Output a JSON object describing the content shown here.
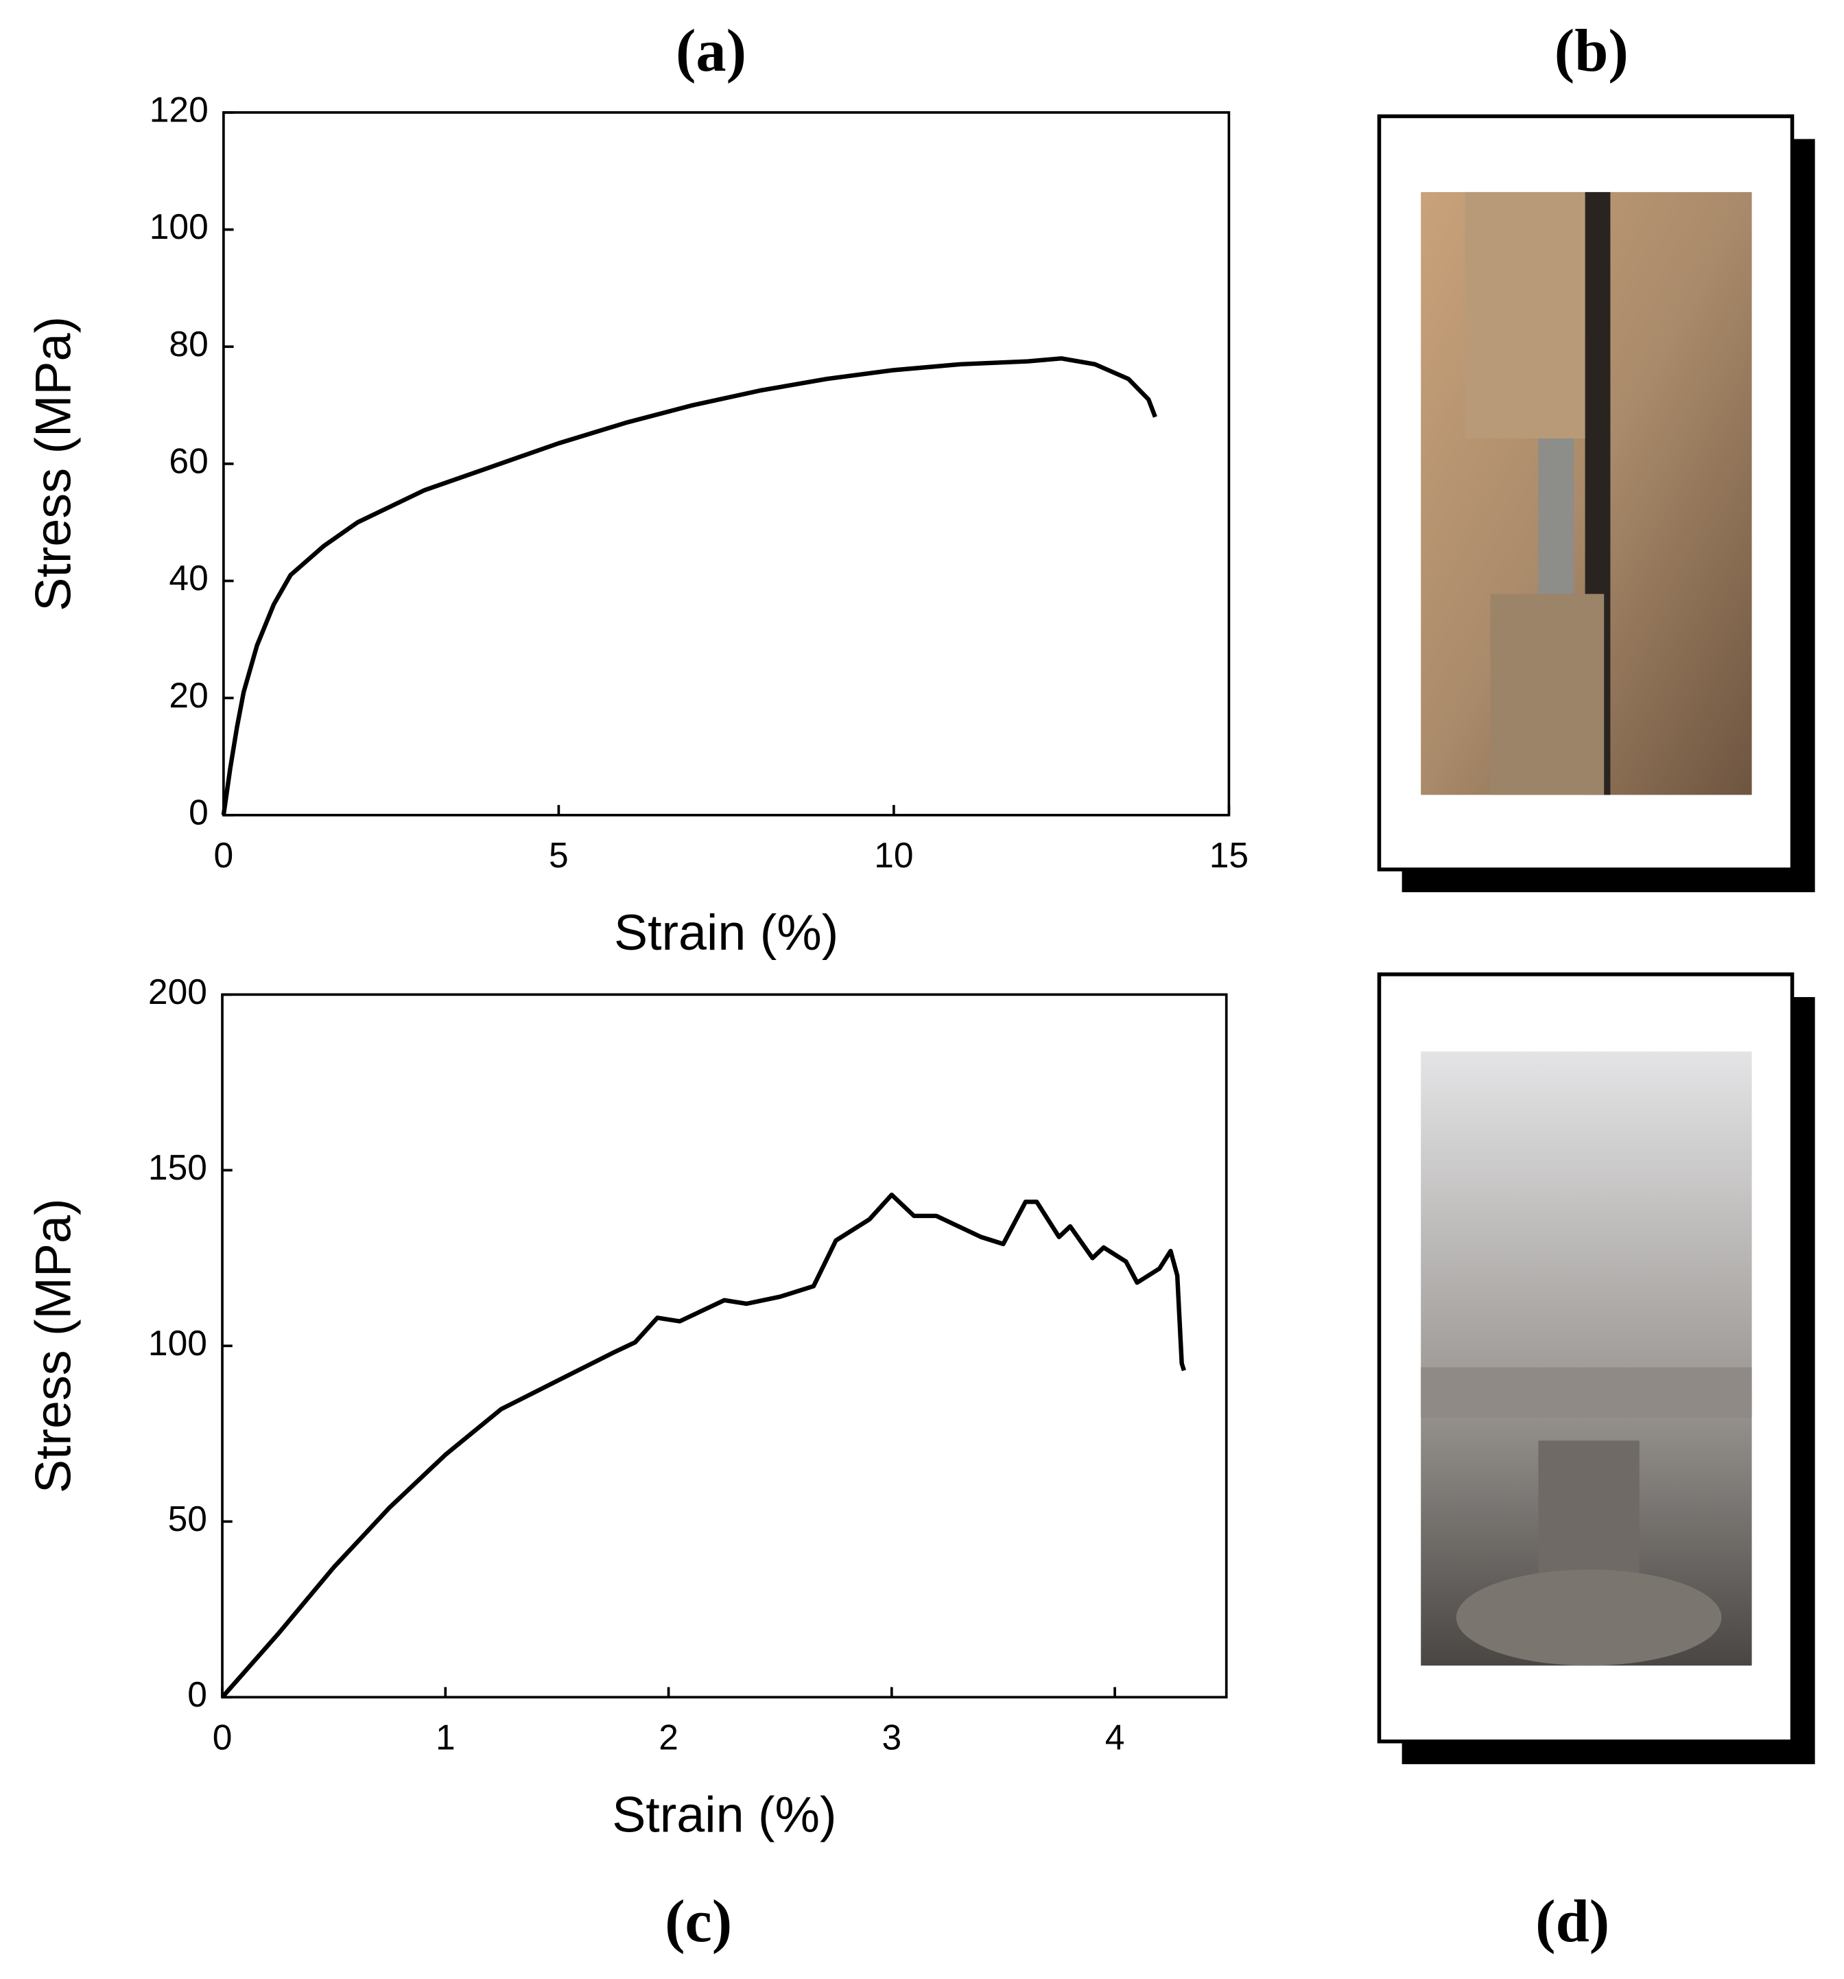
{
  "chart_data": [
    {
      "type": "line",
      "title": "(a)",
      "x_label": "Strain (%)",
      "y_label": "Stress (MPa)",
      "color": "#000000",
      "x": [
        0,
        0.1,
        0.2,
        0.3,
        0.5,
        0.75,
        1,
        1.5,
        2,
        3,
        4,
        5,
        6,
        7,
        8,
        9,
        10,
        11,
        12,
        12.5,
        13,
        13.5,
        13.8,
        13.9
      ],
      "values": [
        0,
        8,
        15,
        21,
        29,
        36,
        41,
        46,
        50,
        55.5,
        59.5,
        63.5,
        67,
        70,
        72.5,
        74.5,
        76,
        77,
        77.5,
        78,
        77,
        74.5,
        71,
        68
      ],
      "xlim": [
        0,
        15
      ],
      "ylim": [
        0,
        120
      ],
      "xticks": [
        0,
        5,
        10,
        15
      ],
      "yticks": [
        0,
        20,
        40,
        60,
        80,
        100,
        120
      ]
    },
    {
      "type": "line",
      "title": "(c)",
      "x_label": "Strain (%)",
      "y_label": "Stress (MPa)",
      "color": "#000000",
      "x": [
        0,
        0.25,
        0.5,
        0.75,
        1,
        1.25,
        1.5,
        1.75,
        1.85,
        1.95,
        2.05,
        2.25,
        2.35,
        2.5,
        2.65,
        2.75,
        2.9,
        3.0,
        3.1,
        3.2,
        3.4,
        3.5,
        3.6,
        3.65,
        3.75,
        3.8,
        3.9,
        3.95,
        4.05,
        4.1,
        4.2,
        4.25,
        4.28,
        4.3,
        4.31
      ],
      "values": [
        0,
        18,
        37,
        54,
        69,
        82,
        90,
        98,
        101,
        108,
        107,
        113,
        112,
        114,
        117,
        130,
        136,
        143,
        137,
        137,
        131,
        129,
        141,
        141,
        131,
        134,
        125,
        128,
        124,
        118,
        122,
        127,
        120,
        95,
        93
      ],
      "xlim": [
        0,
        4.5
      ],
      "ylim": [
        0,
        200
      ],
      "xticks": [
        0,
        1,
        2,
        3,
        4
      ],
      "yticks": [
        0,
        50,
        100,
        150,
        200
      ]
    }
  ],
  "photo_labels": [
    "(b)",
    "(d)"
  ]
}
